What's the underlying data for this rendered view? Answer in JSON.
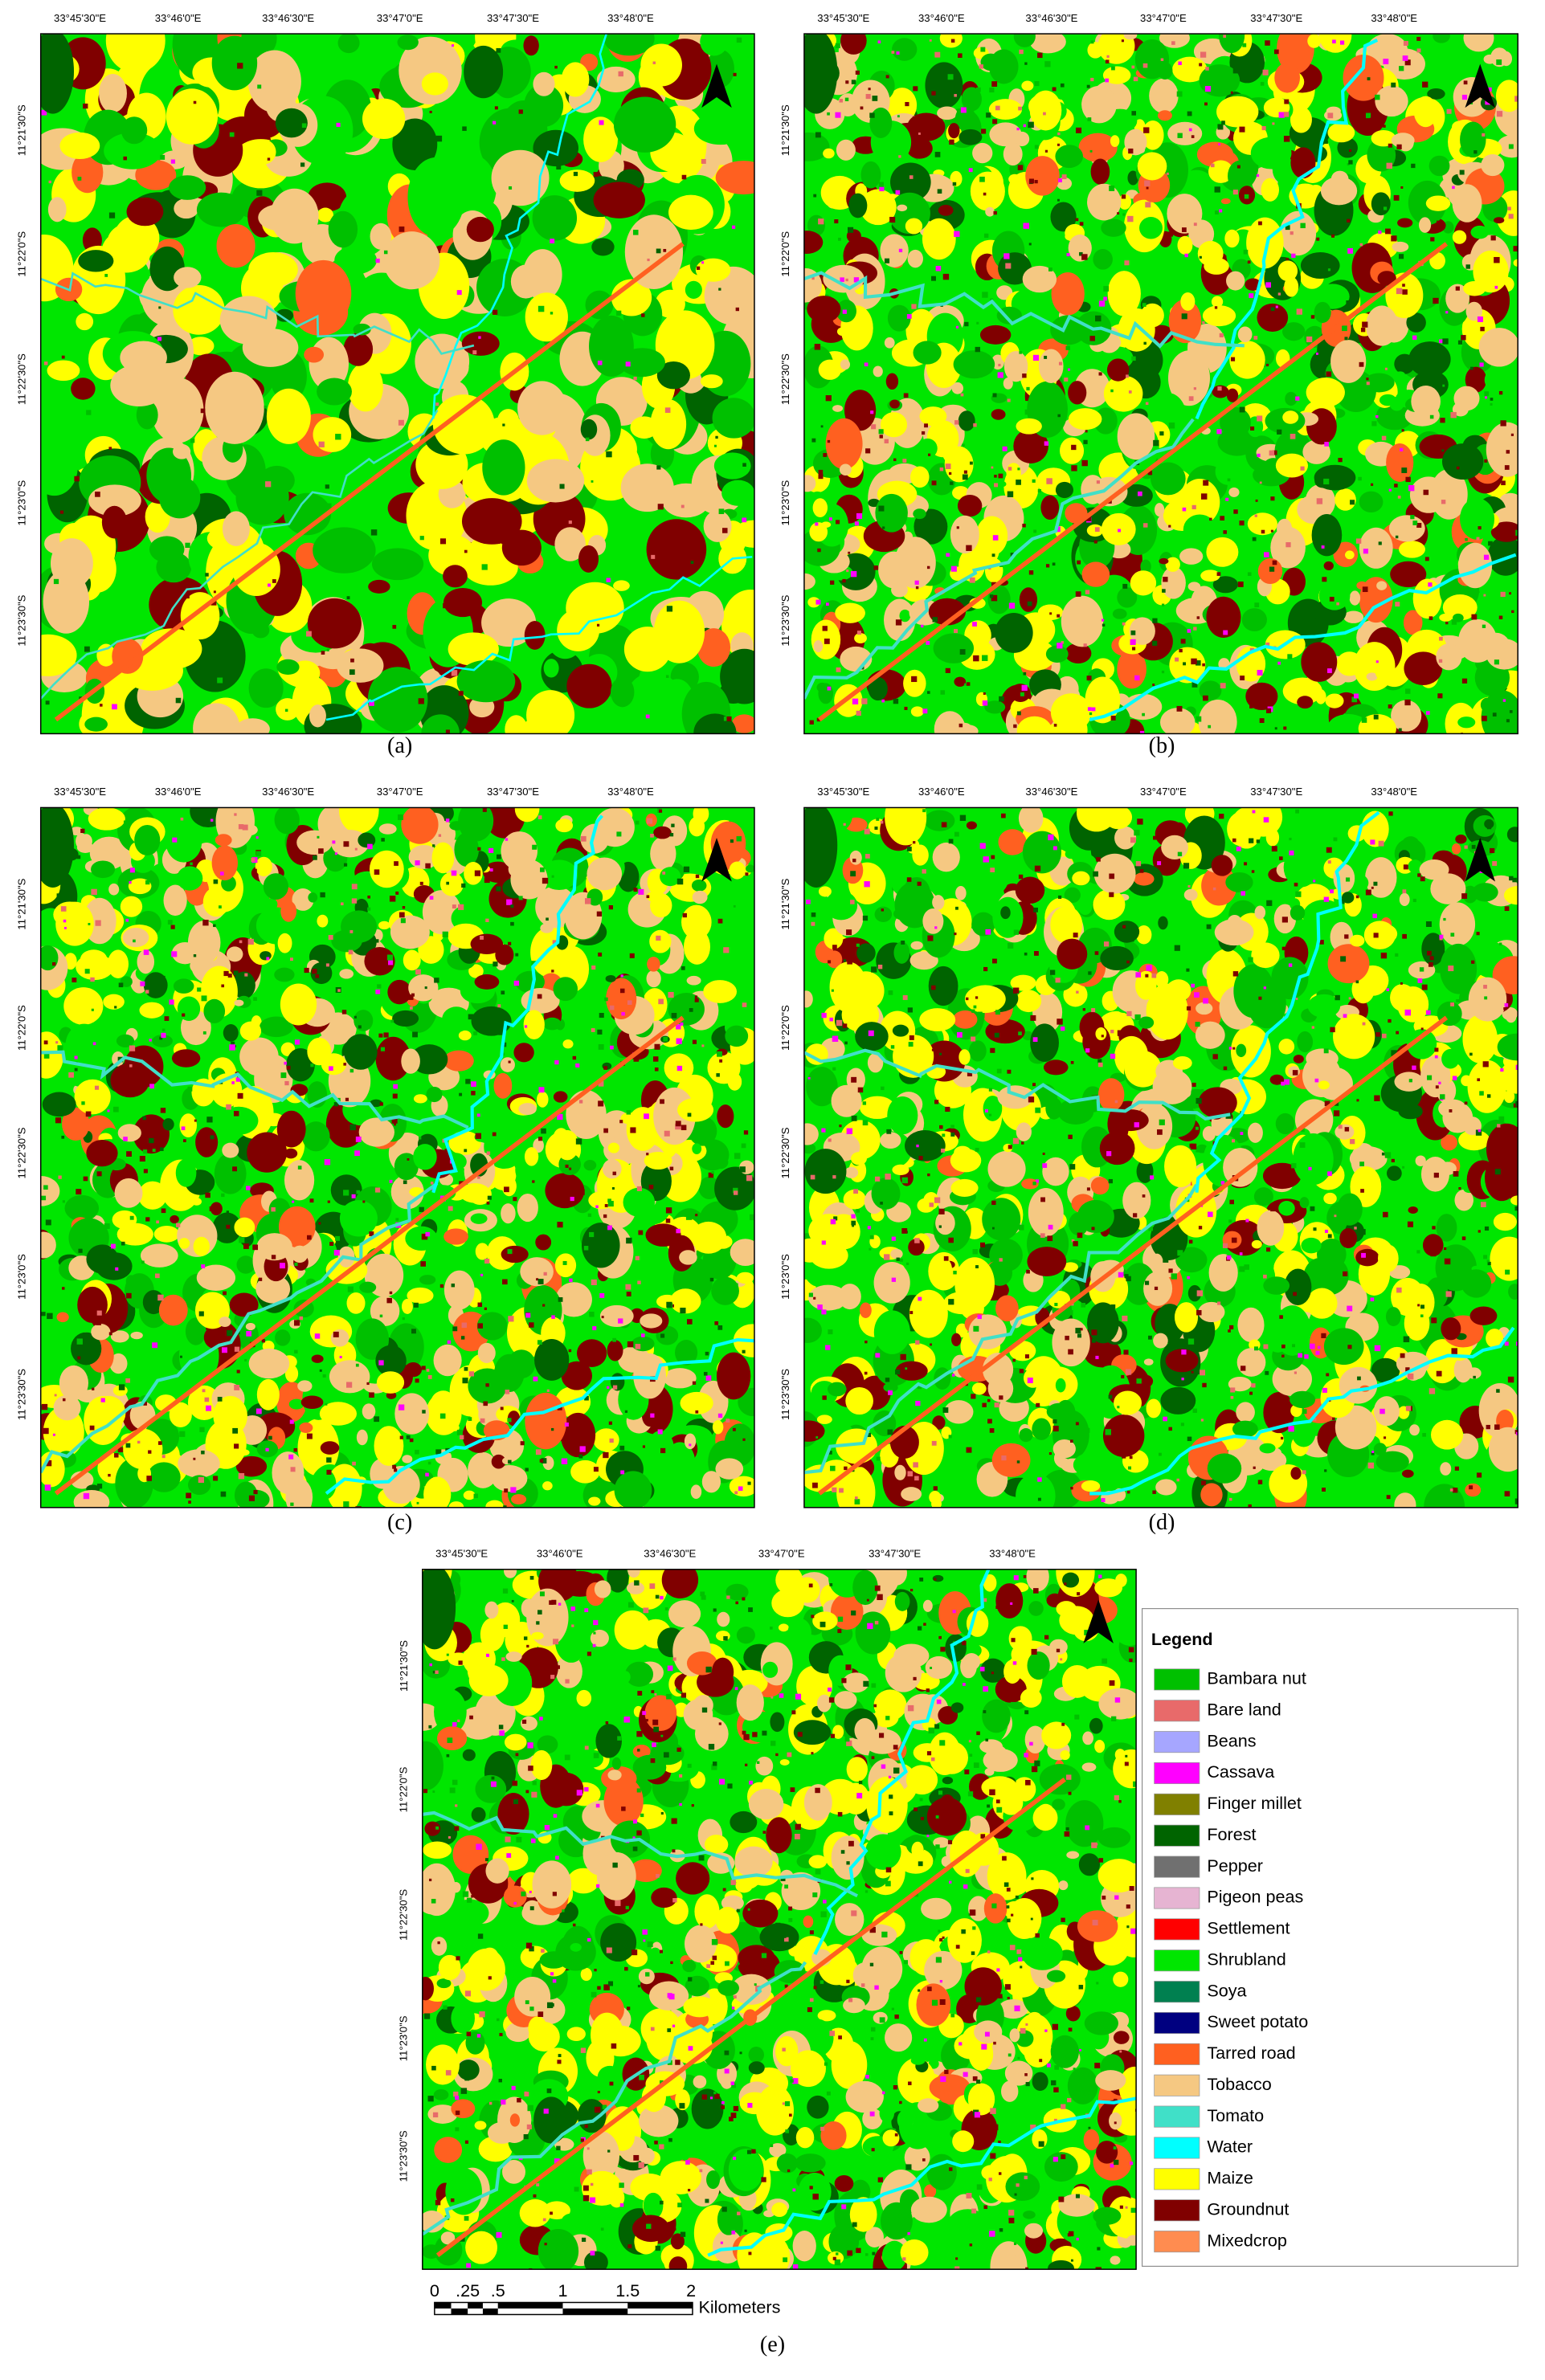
{
  "panels": [
    {
      "label": "(a)"
    },
    {
      "label": "(b)"
    },
    {
      "label": "(c)"
    },
    {
      "label": "(d)"
    },
    {
      "label": "(e)"
    }
  ],
  "x_ticks": [
    "33°45'30\"E",
    "33°46'0\"E",
    "33°46'30\"E",
    "33°47'0\"E",
    "33°47'30\"E",
    "33°48'0\"E"
  ],
  "y_ticks": [
    "11°21'30\"S",
    "11°22'0\"S",
    "11°22'30\"S",
    "11°23'0\"S",
    "11°23'30\"S"
  ],
  "legend": {
    "title": "Legend",
    "items": [
      {
        "name": "Bambara nut",
        "color": "#00c000"
      },
      {
        "name": "Bare land",
        "color": "#e86a6a"
      },
      {
        "name": "Beans",
        "color": "#a6a6ff"
      },
      {
        "name": "Cassava",
        "color": "#ff00ff"
      },
      {
        "name": "Finger millet",
        "color": "#808000"
      },
      {
        "name": "Forest",
        "color": "#006400"
      },
      {
        "name": "Pepper",
        "color": "#707070"
      },
      {
        "name": "Pigeon peas",
        "color": "#e6b4d2"
      },
      {
        "name": "Settlement",
        "color": "#ff0000"
      },
      {
        "name": "Shrubland",
        "color": "#00e600"
      },
      {
        "name": "Soya",
        "color": "#008050"
      },
      {
        "name": "Sweet potato",
        "color": "#000080"
      },
      {
        "name": "Tarred road",
        "color": "#ff6020"
      },
      {
        "name": "Tobacco",
        "color": "#f5c882"
      },
      {
        "name": "Tomato",
        "color": "#40e0c8"
      },
      {
        "name": "Water",
        "color": "#00ffff"
      },
      {
        "name": "Maize",
        "color": "#ffff00"
      },
      {
        "name": "Groundnut",
        "color": "#800000"
      },
      {
        "name": "Mixedcrop",
        "color": "#ff8c50"
      }
    ]
  },
  "scale_bar": {
    "labels": [
      "0",
      ".25",
      ".5",
      "1",
      "1.5",
      "2"
    ],
    "unit": "Kilometers"
  }
}
